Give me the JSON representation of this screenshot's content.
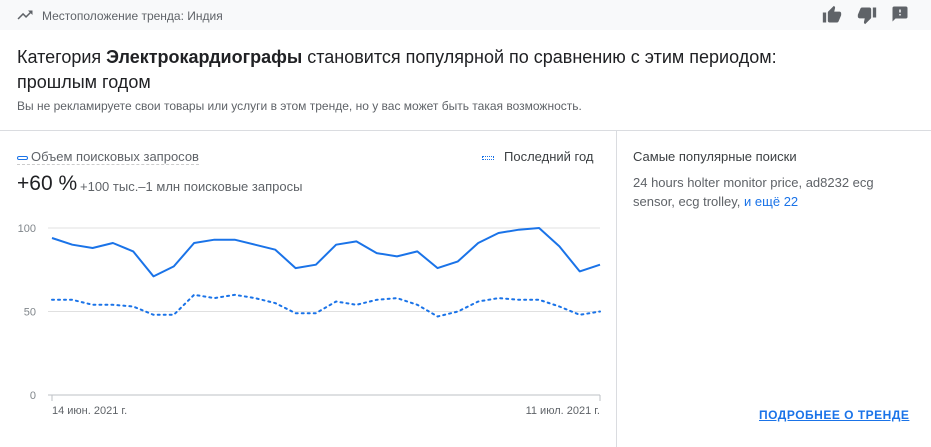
{
  "header": {
    "location": "Местоположение тренда: Индия",
    "icons": [
      "trending-up-icon",
      "thumb-up-icon",
      "thumb-down-icon",
      "feedback-icon"
    ]
  },
  "title": {
    "prefix": "Категория ",
    "category": "Электрокардиографы",
    "suffix": " становится популярной по сравнению с этим периодом: прошлым годом"
  },
  "subtitle": "Вы не рекламируете свои товары или услуги в этом тренде, но у вас может быть такая возможность.",
  "legend": {
    "current": "Объем поисковых запросов",
    "previous": "Последний год"
  },
  "change": "+60 %",
  "range": "+100 тыс.–1 млн поисковые запросы",
  "chart_data": {
    "type": "line",
    "ylim": [
      0,
      100
    ],
    "y_ticks": [
      "0",
      "50",
      "100"
    ],
    "x_labels": [
      "14 июн. 2021 г.",
      "11 июл. 2021 г."
    ],
    "grid": true,
    "legend_placement": "top",
    "series": [
      {
        "name": "Объем поисковых запросов",
        "style": "solid",
        "color": "#1a73e8",
        "values": [
          94,
          90,
          88,
          91,
          86,
          71,
          77,
          91,
          93,
          93,
          90,
          87,
          76,
          78,
          90,
          92,
          85,
          83,
          86,
          76,
          80,
          91,
          97,
          99,
          100,
          89,
          74,
          78
        ]
      },
      {
        "name": "Последний год",
        "style": "dotted",
        "color": "#1a73e8",
        "values": [
          57,
          57,
          54,
          54,
          53,
          48,
          48,
          60,
          58,
          60,
          58,
          55,
          49,
          49,
          56,
          54,
          57,
          58,
          54,
          47,
          50,
          56,
          58,
          57,
          57,
          53,
          48,
          50
        ]
      }
    ]
  },
  "side": {
    "title": "Самые популярные поиски",
    "queries": "24 hours holter monitor price, ad8232 ecg sensor, ecg trolley, ",
    "more_link": "и ещё 22",
    "details": "ПОДРОБНЕЕ О ТРЕНДЕ"
  }
}
